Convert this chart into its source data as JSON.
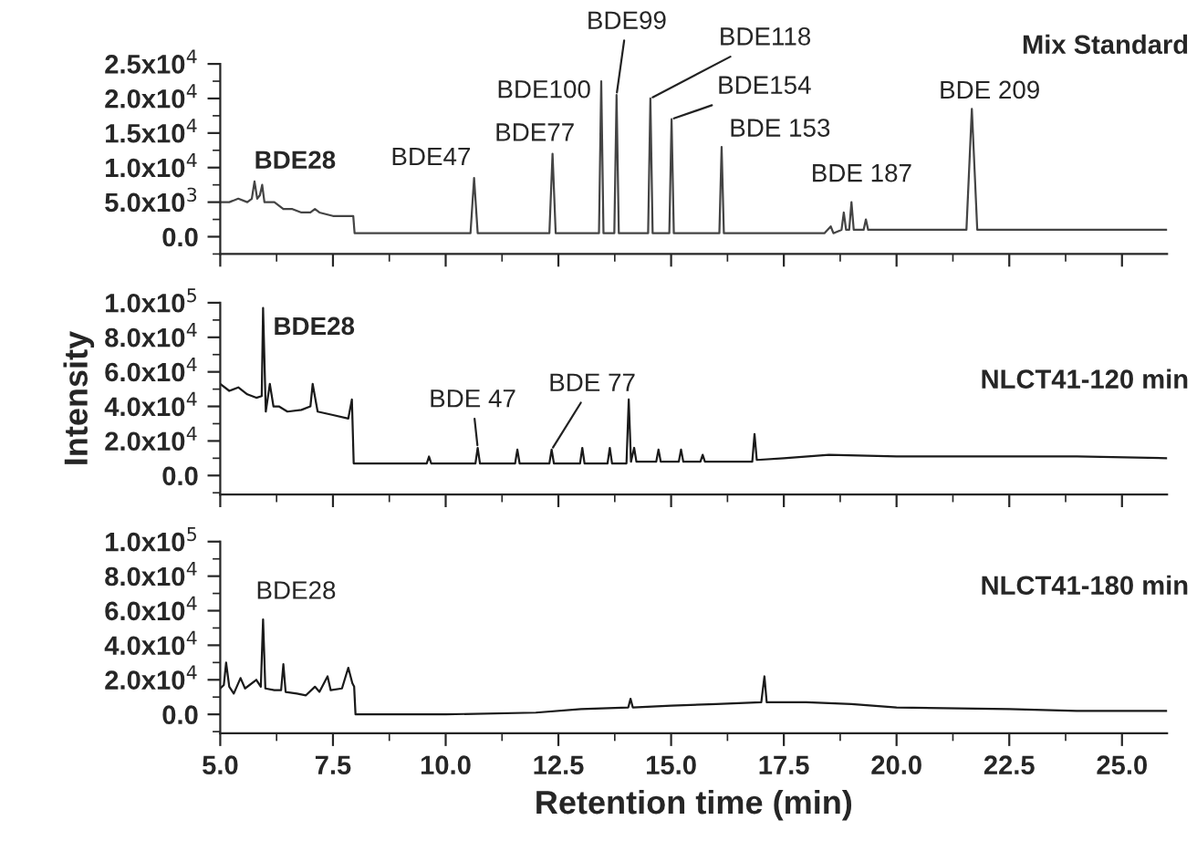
{
  "chart_data": [
    {
      "type": "line",
      "xlim": [
        5,
        26
      ],
      "xticks": [
        {
          "value": 5,
          "label": null
        },
        {
          "value": 7.5,
          "label": null
        },
        {
          "value": 10,
          "label": null
        },
        {
          "value": 12.5,
          "label": null
        },
        {
          "value": 15,
          "label": null
        },
        {
          "value": 17.5,
          "label": null
        },
        {
          "value": 20,
          "label": null
        },
        {
          "value": 22.5,
          "label": null
        },
        {
          "value": 25,
          "label": null
        }
      ],
      "ylim": [
        -2500,
        25000
      ],
      "yticks": [
        {
          "value": 0,
          "label": "0.0"
        },
        {
          "value": 5000,
          "label": "5.0x10$^{3}$"
        },
        {
          "value": 10000,
          "label": "1.0x10$^{4}$"
        },
        {
          "value": 15000,
          "label": "1.5x10$^{4}$"
        },
        {
          "value": 20000,
          "label": "2.0x10$^{4}$"
        },
        {
          "value": 25000,
          "label": "2.5x10$^{4}$"
        }
      ],
      "tick_labels": "y",
      "series": [
        {
          "name": "Mix Standard",
          "color": "#444444",
          "x": [
            5.0,
            5.2,
            5.4,
            5.6,
            5.7,
            5.76,
            5.82,
            5.88,
            5.93,
            5.98,
            6.2,
            6.4,
            6.6,
            6.8,
            7.0,
            7.1,
            7.2,
            7.5,
            7.95,
            7.98,
            8.5,
            10.55,
            10.63,
            10.71,
            12.3,
            12.37,
            12.44,
            13.4,
            13.45,
            13.5,
            13.74,
            13.79,
            13.84,
            14.49,
            14.54,
            14.59,
            14.96,
            15.01,
            15.06,
            16.07,
            16.12,
            16.17,
            18.4,
            18.54,
            18.6,
            18.78,
            18.83,
            18.88,
            18.95,
            19.0,
            19.05,
            19.27,
            19.32,
            19.37,
            21.55,
            21.67,
            21.79,
            26.0
          ],
          "values": [
            5000,
            5000,
            5500,
            5000,
            5500,
            8000,
            5500,
            6000,
            7500,
            5000,
            5000,
            4000,
            4000,
            3500,
            3500,
            4000,
            3500,
            3000,
            3000,
            500,
            500,
            500,
            8500,
            500,
            500,
            12000,
            500,
            500,
            22500,
            500,
            500,
            20500,
            500,
            500,
            20000,
            500,
            500,
            17000,
            500,
            500,
            13000,
            500,
            500,
            1500,
            500,
            1000,
            3500,
            1000,
            1000,
            5000,
            1000,
            1000,
            2500,
            1000,
            1000,
            18500,
            1000,
            1000
          ]
        }
      ],
      "annotations": [
        {
          "text": "BDE28",
          "x": 5.76,
          "y": 8000
        },
        {
          "text": "BDE47",
          "x": 10.63,
          "y": 8500
        },
        {
          "text": "BDE77",
          "x": 12.37,
          "y": 12000
        },
        {
          "text": "BDE100",
          "x": 13.45,
          "y": 22500
        },
        {
          "text": "BDE99",
          "x": 13.79,
          "y": 20500
        },
        {
          "text": "BDE118",
          "x": 14.54,
          "y": 20000
        },
        {
          "text": "BDE154",
          "x": 15.01,
          "y": 17000
        },
        {
          "text": "BDE 153",
          "x": 16.12,
          "y": 13000
        },
        {
          "text": "BDE 187",
          "x": 19.0,
          "y": 5000
        },
        {
          "text": "BDE 209",
          "x": 21.67,
          "y": 18500
        }
      ]
    },
    {
      "type": "line",
      "xlim": [
        5,
        26
      ],
      "xticks": [
        {
          "value": 5,
          "label": null
        },
        {
          "value": 7.5,
          "label": null
        },
        {
          "value": 10,
          "label": null
        },
        {
          "value": 12.5,
          "label": null
        },
        {
          "value": 15,
          "label": null
        },
        {
          "value": 17.5,
          "label": null
        },
        {
          "value": 20,
          "label": null
        },
        {
          "value": 22.5,
          "label": null
        },
        {
          "value": 25,
          "label": null
        }
      ],
      "ylim": [
        -11000,
        100000
      ],
      "yticks": [
        {
          "value": 0,
          "label": "0.0"
        },
        {
          "value": 20000,
          "label": "2.0x10$^{4}$"
        },
        {
          "value": 40000,
          "label": "4.0x10$^{4}$"
        },
        {
          "value": 60000,
          "label": "6.0x10$^{4}$"
        },
        {
          "value": 80000,
          "label": "8.0x10$^{4}$"
        },
        {
          "value": 100000,
          "label": "1.0x10$^{5}$"
        }
      ],
      "tick_labels": "y",
      "ylabel": "Intensity",
      "series": [
        {
          "name": "NLCT41-120 min",
          "color": "#1a1a1a",
          "x": [
            5.0,
            5.2,
            5.4,
            5.6,
            5.8,
            5.92,
            5.95,
            6.01,
            6.1,
            6.18,
            6.3,
            6.49,
            6.8,
            7.0,
            7.05,
            7.16,
            7.5,
            7.84,
            7.92,
            7.96,
            9.58,
            9.63,
            9.68,
            10.66,
            10.71,
            10.76,
            11.54,
            11.59,
            11.64,
            12.3,
            12.35,
            12.4,
            12.98,
            13.03,
            13.08,
            13.59,
            13.64,
            13.69,
            14.01,
            14.06,
            14.11,
            14.18,
            14.23,
            14.67,
            14.72,
            14.77,
            15.17,
            15.22,
            15.27,
            15.65,
            15.7,
            15.75,
            16.8,
            16.85,
            16.9,
            17.5,
            18.5,
            20.0,
            22.0,
            24.0,
            26.0
          ],
          "values": [
            53000,
            49000,
            51000,
            47000,
            45000,
            46000,
            97000,
            37000,
            53000,
            40000,
            40000,
            37000,
            38000,
            40000,
            53000,
            37000,
            35000,
            33000,
            44000,
            7000,
            7000,
            11000,
            7000,
            7000,
            16000,
            7000,
            7000,
            15000,
            7000,
            7000,
            15000,
            7000,
            7000,
            16000,
            7000,
            7000,
            16000,
            7000,
            7000,
            44000,
            8000,
            16000,
            8000,
            8000,
            15000,
            8000,
            8000,
            15000,
            8000,
            8000,
            12000,
            8000,
            8000,
            24000,
            9000,
            10000,
            12000,
            11000,
            11000,
            11000,
            10000
          ]
        }
      ],
      "annotations": [
        {
          "text": "BDE28",
          "x": 5.95,
          "y": 97000
        },
        {
          "text": "BDE 47",
          "x": 10.71,
          "y": 16000
        },
        {
          "text": "BDE 77",
          "x": 12.35,
          "y": 15000
        }
      ]
    },
    {
      "type": "line",
      "xlim": [
        5,
        26
      ],
      "xticks": [
        {
          "value": 5,
          "label": "5.0"
        },
        {
          "value": 7.5,
          "label": "7.5"
        },
        {
          "value": 10,
          "label": "10.0"
        },
        {
          "value": 12.5,
          "label": "12.5"
        },
        {
          "value": 15,
          "label": "15.0"
        },
        {
          "value": 17.5,
          "label": "17.5"
        },
        {
          "value": 20,
          "label": "20.0"
        },
        {
          "value": 22.5,
          "label": "22.5"
        },
        {
          "value": 25,
          "label": "25.0"
        }
      ],
      "ylim": [
        -11000,
        100000
      ],
      "yticks": [
        {
          "value": 0,
          "label": "0.0"
        },
        {
          "value": 20000,
          "label": "2.0x10$^{4}$"
        },
        {
          "value": 40000,
          "label": "4.0x10$^{4}$"
        },
        {
          "value": 60000,
          "label": "6.0x10$^{4}$"
        },
        {
          "value": 80000,
          "label": "8.0x10$^{4}$"
        },
        {
          "value": 100000,
          "label": "1.0x10$^{5}$"
        }
      ],
      "xlabel": "Retention time (min)",
      "series": [
        {
          "name": "NLCT41-180 min",
          "color": "#1a1a1a",
          "x": [
            5.0,
            5.08,
            5.13,
            5.2,
            5.3,
            5.45,
            5.55,
            5.8,
            5.9,
            5.95,
            6.0,
            6.2,
            6.35,
            6.4,
            6.45,
            6.7,
            6.9,
            7.1,
            7.2,
            7.38,
            7.45,
            7.7,
            7.84,
            7.93,
            7.97,
            8.0,
            10.0,
            12.0,
            13.0,
            14.05,
            14.1,
            14.15,
            15.0,
            16.0,
            17.0,
            17.07,
            17.12,
            18.0,
            19.0,
            20.0,
            22.5,
            24.0,
            26.0
          ],
          "values": [
            15000,
            17000,
            30000,
            16000,
            12000,
            21000,
            15000,
            20000,
            16000,
            55000,
            15000,
            14000,
            14000,
            29000,
            13000,
            12000,
            11000,
            16000,
            13000,
            22000,
            14000,
            15000,
            27000,
            18000,
            16000,
            0,
            0,
            1000,
            3000,
            4000,
            9000,
            4000,
            5000,
            6000,
            7000,
            22000,
            7000,
            7000,
            6000,
            4000,
            3000,
            2000,
            2000
          ]
        }
      ],
      "annotations": [
        {
          "text": "BDE28",
          "x": 5.95,
          "y": 55000
        }
      ]
    }
  ]
}
